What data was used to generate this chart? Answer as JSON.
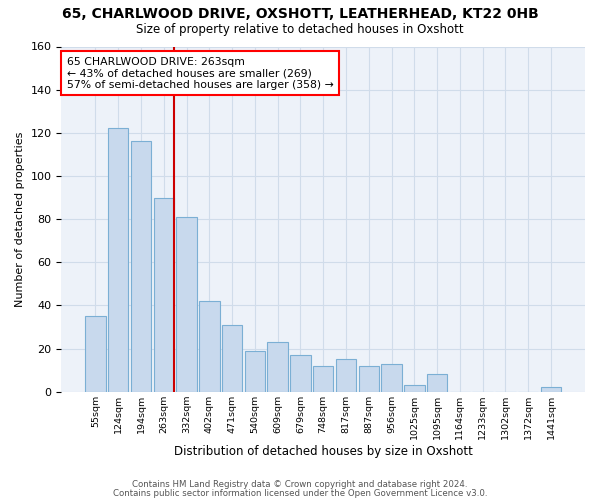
{
  "title_line1": "65, CHARLWOOD DRIVE, OXSHOTT, LEATHERHEAD, KT22 0HB",
  "title_line2": "Size of property relative to detached houses in Oxshott",
  "xlabel": "Distribution of detached houses by size in Oxshott",
  "ylabel": "Number of detached properties",
  "bar_labels": [
    "55sqm",
    "124sqm",
    "194sqm",
    "263sqm",
    "332sqm",
    "402sqm",
    "471sqm",
    "540sqm",
    "609sqm",
    "679sqm",
    "748sqm",
    "817sqm",
    "887sqm",
    "956sqm",
    "1025sqm",
    "1095sqm",
    "1164sqm",
    "1233sqm",
    "1302sqm",
    "1372sqm",
    "1441sqm"
  ],
  "bar_values": [
    35,
    122,
    116,
    90,
    81,
    42,
    31,
    19,
    23,
    17,
    12,
    15,
    12,
    13,
    3,
    8,
    0,
    0,
    0,
    0,
    2
  ],
  "bar_color": "#c8d9ed",
  "bar_edge_color": "#7bafd4",
  "red_line_index": 3,
  "annotation_line1": "65 CHARLWOOD DRIVE: 263sqm",
  "annotation_line2": "← 43% of detached houses are smaller (269)",
  "annotation_line3": "57% of semi-detached houses are larger (358) →",
  "annotation_box_color": "white",
  "annotation_box_edge_color": "red",
  "red_line_color": "#cc0000",
  "ylim": [
    0,
    160
  ],
  "yticks": [
    0,
    20,
    40,
    60,
    80,
    100,
    120,
    140,
    160
  ],
  "footer_line1": "Contains HM Land Registry data © Crown copyright and database right 2024.",
  "footer_line2": "Contains public sector information licensed under the Open Government Licence v3.0.",
  "grid_color": "#d0dcea",
  "bg_color": "#edf2f9"
}
